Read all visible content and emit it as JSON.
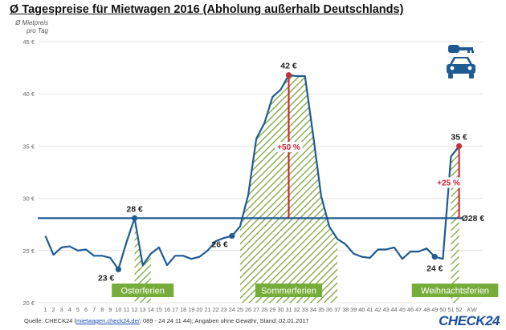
{
  "header": {
    "title": "Ø Tagespreise für Mietwagen 2016 (Abholung außerhalb Deutschlands)"
  },
  "axis": {
    "ylabel_line1": "Ø Mietpreis",
    "ylabel_line2": "pro Tag",
    "x_unit": "KW"
  },
  "footer": {
    "source_prefix": "Quelle: CHECK24 (",
    "source_link": "mietwagen.check24.de/",
    "source_suffix": "; 089 - 24 24 11 44); Angaben ohne Gewähr, Stand: 02.01.2017",
    "logo": "CHECK24"
  },
  "icons": {
    "key": "key-icon",
    "car": "car-icon"
  },
  "colors": {
    "line": "#1f5b93",
    "average": "#1f5b93",
    "hatch": "#7aa53a",
    "label_bg": "#76ad3a",
    "delta": "#d01e2a"
  },
  "chart_data": {
    "type": "line",
    "x": [
      1,
      2,
      3,
      4,
      5,
      6,
      7,
      8,
      9,
      10,
      11,
      12,
      13,
      14,
      15,
      16,
      17,
      18,
      19,
      20,
      21,
      22,
      23,
      24,
      25,
      26,
      27,
      28,
      29,
      30,
      31,
      32,
      33,
      34,
      35,
      36,
      37,
      38,
      39,
      40,
      41,
      42,
      43,
      44,
      45,
      46,
      47,
      48,
      49,
      50,
      51,
      52
    ],
    "values": [
      26.4,
      24.6,
      25.3,
      25.4,
      25.0,
      25.1,
      24.5,
      24.5,
      24.3,
      23.2,
      25.8,
      28.1,
      23.6,
      24.7,
      25.3,
      23.6,
      24.5,
      24.5,
      24.2,
      24.4,
      25.0,
      25.9,
      26.2,
      26.4,
      27.3,
      30.3,
      35.7,
      37.2,
      39.7,
      40.4,
      41.8,
      41.7,
      41.7,
      36.1,
      30.2,
      27.3,
      26.1,
      25.6,
      24.7,
      24.4,
      24.3,
      25.1,
      25.1,
      25.3,
      24.2,
      24.9,
      24.9,
      25.2,
      24.4,
      24.2,
      34.0,
      35.0
    ],
    "ylim": [
      20,
      45
    ],
    "yticks": [
      20,
      25,
      30,
      35,
      40,
      45
    ],
    "ytick_labels": [
      "20 €",
      "25 €",
      "30 €",
      "35 €",
      "40 €",
      "45 €"
    ],
    "average": 28.1,
    "average_label": "Ø28 €",
    "holidays": [
      {
        "label": "Osterferien",
        "start": 12,
        "end": 14
      },
      {
        "label": "Sommerferien",
        "start": 25,
        "end": 37
      },
      {
        "label": "Weihnachtsferien",
        "start": 51,
        "end": 52
      }
    ],
    "annotations": [
      {
        "x": 10,
        "y": 23.2,
        "text": "23 €",
        "marker": true,
        "pos": "bl"
      },
      {
        "x": 12,
        "y": 28.1,
        "text": "28 €",
        "marker": true,
        "pos": "t"
      },
      {
        "x": 24,
        "y": 26.4,
        "text": "26 €",
        "marker": true,
        "pos": "bl"
      },
      {
        "x": 31,
        "y": 41.8,
        "text": "42 €",
        "marker": true,
        "pos": "t",
        "marker_color": "#c0343c"
      },
      {
        "x": 49,
        "y": 24.4,
        "text": "24 €",
        "marker": true,
        "pos": "b"
      },
      {
        "x": 52,
        "y": 35.0,
        "text": "35 €",
        "marker": true,
        "pos": "t",
        "marker_color": "#c0343c"
      }
    ],
    "deltas": [
      {
        "x": 31,
        "from": 28.1,
        "to": 41.8,
        "text": "+50 %"
      },
      {
        "x": 52,
        "from": 28.1,
        "to": 35.0,
        "text": "+25 %"
      }
    ]
  }
}
